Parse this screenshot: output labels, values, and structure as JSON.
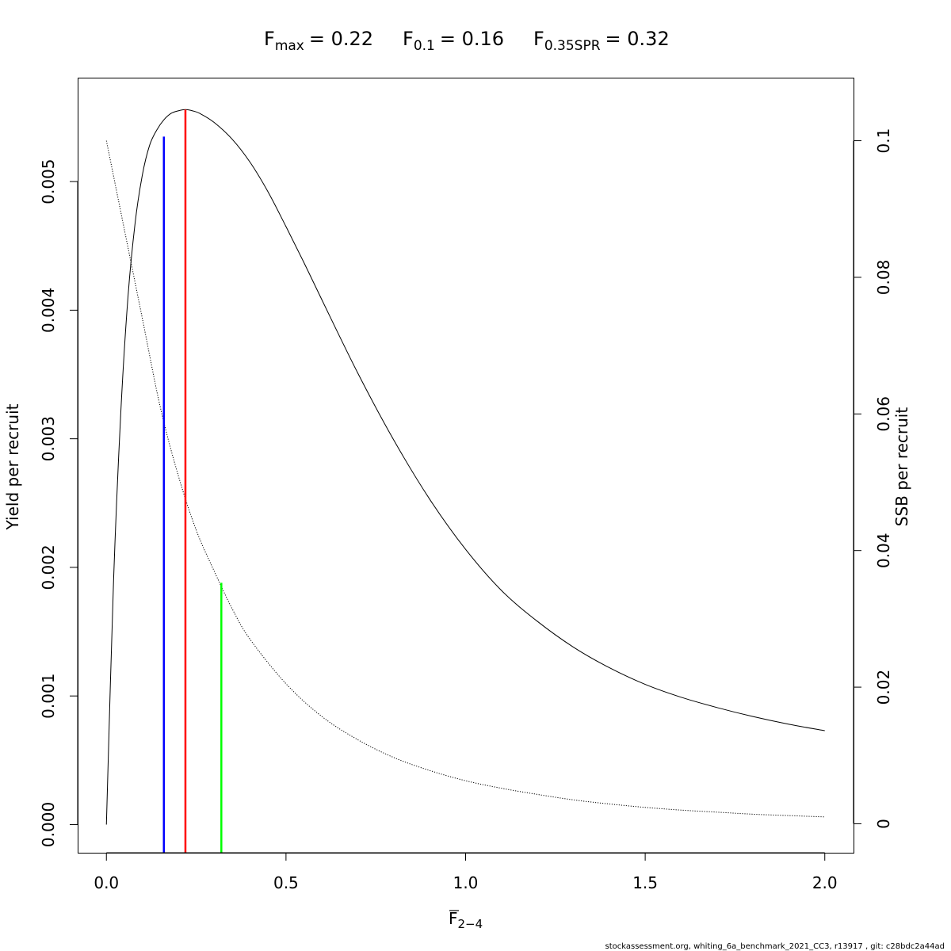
{
  "title": {
    "fmax_label": "F",
    "fmax_sub": "max",
    "fmax_value": "= 0.22",
    "f01_label": "F",
    "f01_sub": "0.1",
    "f01_value": "= 0.16",
    "fspr_label": "F",
    "fspr_sub": "0.35SPR",
    "fspr_value": "= 0.32"
  },
  "footer": "stockassessment.org, whiting_6a_benchmark_2021_CC3, r13917 , git: c28bdc2a44ad",
  "chart_data": {
    "type": "line",
    "xlabel": "F",
    "xlabel_sub": "2−4",
    "ylabel": "Yield per recruit",
    "y2label": "SSB per recruit",
    "xlim": [
      -0.08,
      2.08
    ],
    "ylim": [
      -0.000219,
      0.005808
    ],
    "y2lim": [
      -0.00424,
      0.10923
    ],
    "x_ticks": [
      0.0,
      0.5,
      1.0,
      1.5,
      2.0
    ],
    "x_tick_labels": [
      "0.0",
      "0.5",
      "1.0",
      "1.5",
      "2.0"
    ],
    "y_ticks": [
      0.0,
      0.001,
      0.002,
      0.003,
      0.004,
      0.005
    ],
    "y_tick_labels": [
      "0.000",
      "0.001",
      "0.002",
      "0.003",
      "0.004",
      "0.005"
    ],
    "y2_ticks": [
      0,
      0.02,
      0.04,
      0.06,
      0.08,
      0.1
    ],
    "y2_tick_labels": [
      "0",
      "0.02",
      "0.04",
      "0.06",
      "0.08",
      "0.1"
    ],
    "series": [
      {
        "style": "solid",
        "axis": "left",
        "color": "#000000",
        "x": [
          0.0,
          0.02,
          0.04,
          0.06,
          0.08,
          0.1,
          0.12,
          0.14,
          0.16,
          0.18,
          0.2,
          0.22,
          0.24,
          0.26,
          0.3,
          0.35,
          0.4,
          0.45,
          0.5,
          0.55,
          0.6,
          0.7,
          0.8,
          0.9,
          1.0,
          1.1,
          1.2,
          1.3,
          1.4,
          1.5,
          1.6,
          1.7,
          1.8,
          1.9,
          2.0
        ],
        "y": [
          0.0,
          0.0019,
          0.0032,
          0.0041,
          0.00468,
          0.00505,
          0.00528,
          0.0054,
          0.00548,
          0.00553,
          0.00555,
          0.00556,
          0.00555,
          0.00553,
          0.00546,
          0.00533,
          0.00515,
          0.00492,
          0.00465,
          0.00437,
          0.00408,
          0.00351,
          0.00299,
          0.00253,
          0.00214,
          0.00182,
          0.00158,
          0.00138,
          0.00122,
          0.00109,
          0.00099,
          0.00091,
          0.00084,
          0.00078,
          0.00073
        ]
      },
      {
        "style": "dotted",
        "axis": "right",
        "color": "#000000",
        "x": [
          0.0,
          0.05,
          0.1,
          0.15,
          0.2,
          0.25,
          0.3,
          0.35,
          0.4,
          0.5,
          0.6,
          0.7,
          0.8,
          0.9,
          1.0,
          1.1,
          1.2,
          1.3,
          1.4,
          1.5,
          1.6,
          1.7,
          1.8,
          1.9,
          2.0
        ],
        "y": [
          0.1,
          0.087,
          0.074,
          0.061,
          0.051,
          0.043,
          0.037,
          0.0315,
          0.027,
          0.0205,
          0.0157,
          0.0123,
          0.0097,
          0.0078,
          0.0063,
          0.0052,
          0.0043,
          0.0035,
          0.0029,
          0.0024,
          0.002,
          0.0017,
          0.0014,
          0.0012,
          0.001
        ]
      }
    ],
    "reference_lines": [
      {
        "name": "F0.1",
        "x": 0.16,
        "y_top": 0.00535,
        "color": "#0000ff"
      },
      {
        "name": "Fmax",
        "x": 0.22,
        "y_top": 0.00556,
        "color": "#ff0000"
      },
      {
        "name": "F0.35SPR",
        "x": 0.32,
        "y_top": 0.00188,
        "color": "#00ff00"
      }
    ]
  }
}
